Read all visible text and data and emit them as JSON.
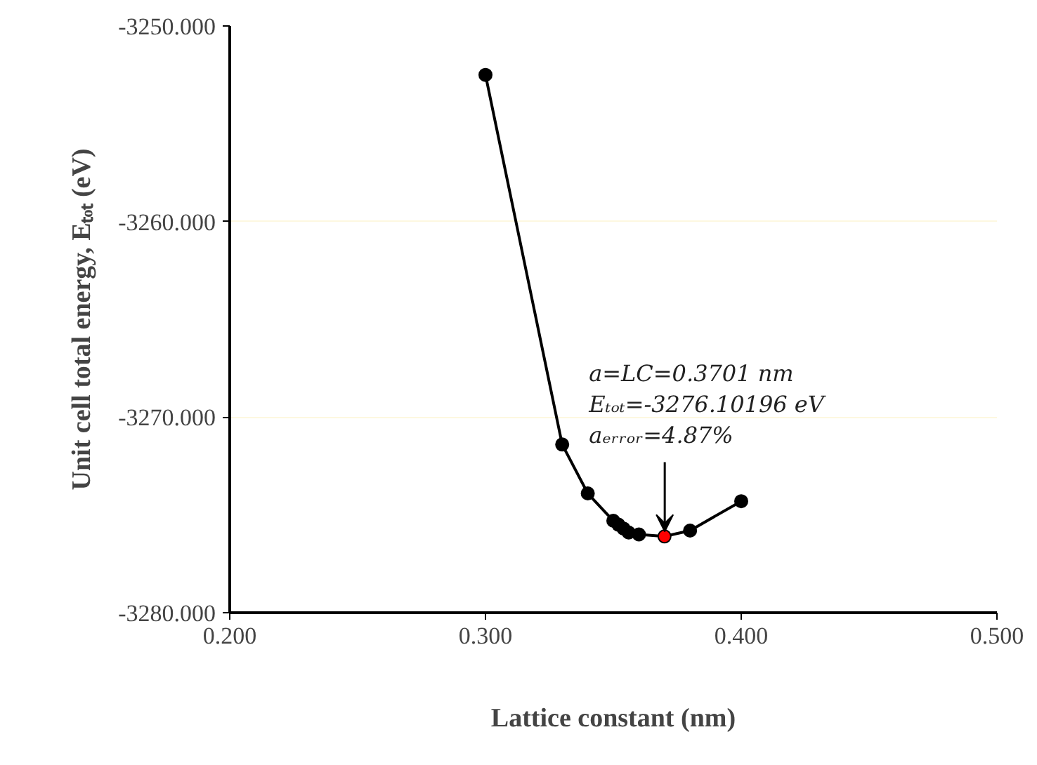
{
  "chart_data": {
    "type": "line",
    "xlabel": "Lattice constant (nm)",
    "ylabel": "Unit cell total energy, Eₜₒₜ (eV)",
    "x": [
      0.3,
      0.33,
      0.34,
      0.35,
      0.352,
      0.354,
      0.356,
      0.36,
      0.37,
      0.38,
      0.4
    ],
    "values": [
      -3252.5,
      -3271.4,
      -3273.9,
      -3275.3,
      -3275.5,
      -3275.7,
      -3275.9,
      -3276.0,
      -3276.1,
      -3275.8,
      -3274.3
    ],
    "color": "#000000",
    "colors": [
      "#000000",
      "#000000",
      "#000000",
      "#000000",
      "#000000",
      "#000000",
      "#000000",
      "#000000",
      "#ff0000",
      "#000000",
      "#000000"
    ],
    "marker": "circle",
    "line_style": "solid",
    "grid": "y",
    "xlim": [
      0.2,
      0.5
    ],
    "xticks": [
      {
        "value": 0.2,
        "label": "0.200"
      },
      {
        "value": 0.3,
        "label": "0.300"
      },
      {
        "value": 0.4,
        "label": "0.400"
      },
      {
        "value": 0.5,
        "label": "0.500"
      }
    ],
    "ylim": [
      -3280,
      -3250
    ],
    "yticks": [
      {
        "value": -3280,
        "label": "-3280.000"
      },
      {
        "value": -3270,
        "label": "-3270.000"
      },
      {
        "value": -3260,
        "label": "-3260.000"
      },
      {
        "value": -3250,
        "label": "-3250.000"
      }
    ],
    "annotations": [
      {
        "text": "a=LC=0.3701 nm\nEₜₒₜ=-3276.10196 eV\naₑᵣᵣₒᵣ=4.87%",
        "x": 0.3701,
        "y": -3276.10196
      }
    ]
  }
}
